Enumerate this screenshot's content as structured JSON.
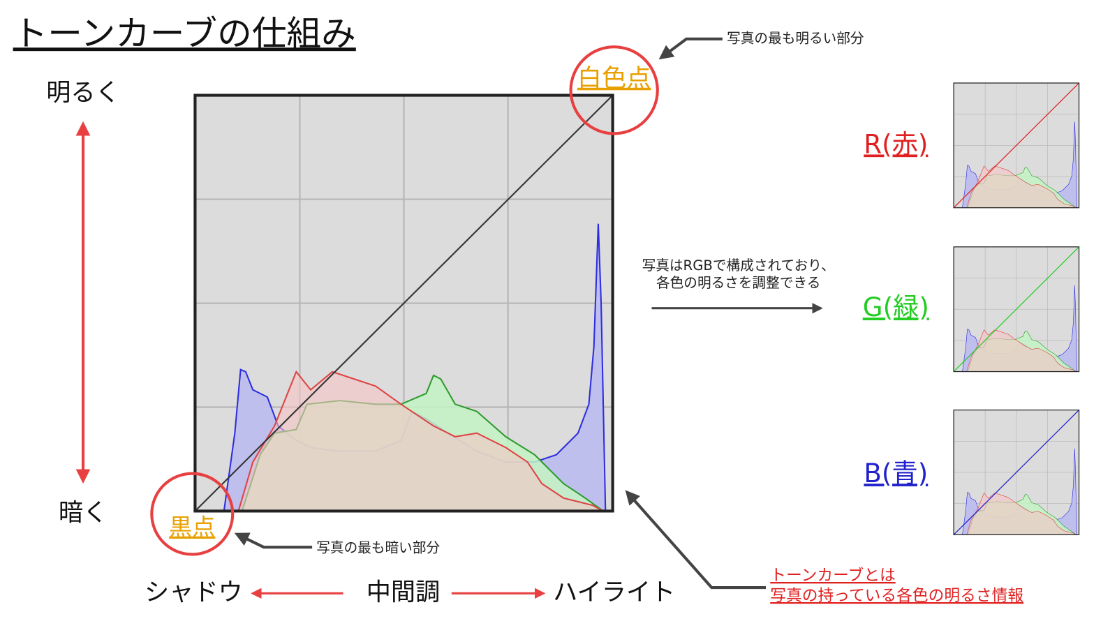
{
  "title": "トーンカーブの仕組み",
  "axis": {
    "top": "明るく",
    "bottom": "暗く"
  },
  "points": {
    "white": {
      "label": "白色点",
      "note": "写真の最も明るい部分"
    },
    "black": {
      "label": "黒点",
      "note": "写真の最も暗い部分"
    }
  },
  "tones": [
    "シャドウ",
    "中間調",
    "ハイライト"
  ],
  "rgb_note": [
    "写真はRGBで構成されており、",
    "各色の明るさを調整できる"
  ],
  "channels": [
    "R(赤)",
    "G(緑)",
    "B(青)"
  ],
  "definition": [
    "トーンカーブとは",
    "写真の持っている各色の明るさ情報"
  ]
}
